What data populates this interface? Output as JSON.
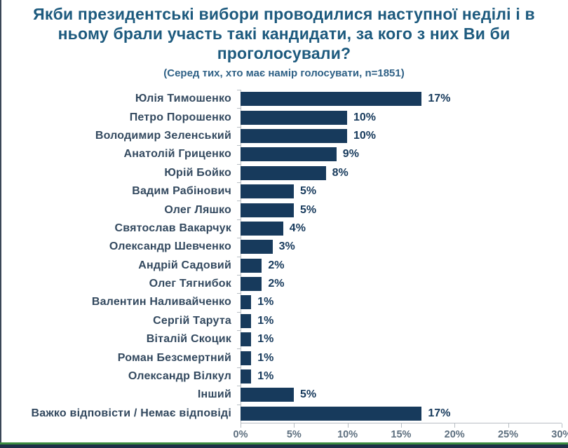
{
  "header": {
    "title_lines": [
      "Якби президентські вибори проводилися наступної неділі і в",
      "ньому брали участь такі кандидати, за кого з них Ви би",
      "проголосували?"
    ],
    "subtitle": "(Серед тих, хто має намір голосувати, n=1851)"
  },
  "chart_data": {
    "type": "bar",
    "orientation": "horizontal",
    "title": "Якби президентські вибори проводилися наступної неділі і в ньому брали участь такі кандидати, за кого з них Ви би проголосували?",
    "subtitle": "(Серед тих, хто має намір голосувати, n=1851)",
    "categories": [
      "Юлія Тимошенко",
      "Петро Порошенко",
      "Володимир Зеленський",
      "Анатолій Гриценко",
      "Юрій Бойко",
      "Вадим Рабінович",
      "Олег Ляшко",
      "Святослав Вакарчук",
      "Олександр Шевченко",
      "Андрій Садовий",
      "Олег Тягнибок",
      "Валентин Наливайченко",
      "Сергій Тарута",
      "Віталій Скоцик",
      "Роман Безсмертний",
      "Олександр Вілкул",
      "Інший",
      "Важко відповісти / Немає відповіді"
    ],
    "values": [
      17,
      10,
      10,
      9,
      8,
      5,
      5,
      4,
      3,
      2,
      2,
      1,
      1,
      1,
      1,
      1,
      5,
      17
    ],
    "value_labels": [
      "17%",
      "10%",
      "10%",
      "9%",
      "8%",
      "5%",
      "5%",
      "4%",
      "3%",
      "2%",
      "2%",
      "1%",
      "1%",
      "1%",
      "1%",
      "1%",
      "5%",
      "17%"
    ],
    "x_ticks": [
      "0%",
      "5%",
      "10%",
      "15%",
      "20%",
      "25%",
      "30%"
    ],
    "xlim": [
      0,
      30
    ],
    "grid": false,
    "legend": "none",
    "colors": {
      "bar": "#173a5c",
      "title_text": "#1d5a7e",
      "category_text": "#33495f",
      "value_text": "#173a5c",
      "axis": "#b8bec4",
      "tick_text": "#5c6e7e",
      "bottom_divider_green": "#3c8c40",
      "bottom_strip_navy": "#1d2f47"
    }
  }
}
